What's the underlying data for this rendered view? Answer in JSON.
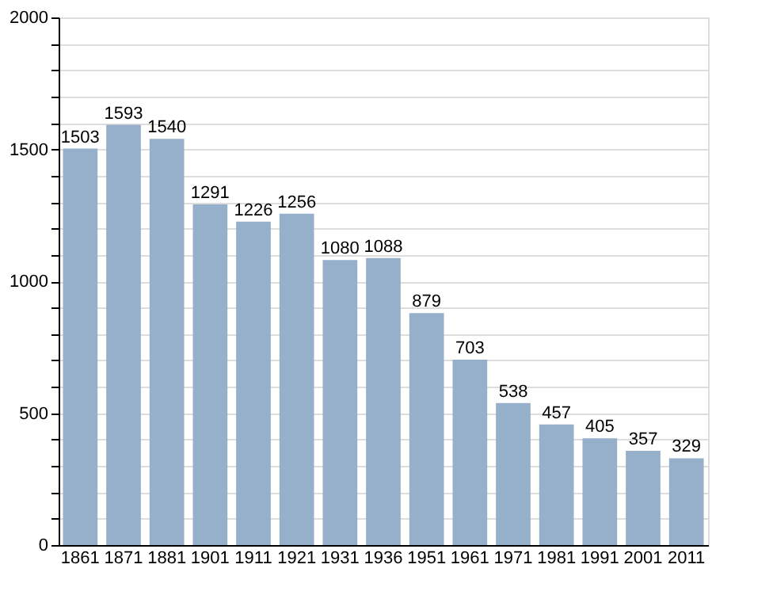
{
  "chart_data": {
    "type": "bar",
    "categories": [
      "1861",
      "1871",
      "1881",
      "1901",
      "1911",
      "1921",
      "1931",
      "1936",
      "1951",
      "1961",
      "1971",
      "1981",
      "1991",
      "2001",
      "2011"
    ],
    "values": [
      1503,
      1593,
      1540,
      1291,
      1226,
      1256,
      1080,
      1088,
      879,
      703,
      538,
      457,
      405,
      357,
      329
    ],
    "color": "#96b0cc",
    "ylim": [
      0,
      2000
    ],
    "yticks": [
      0,
      {
        "value": 100,
        "label": null
      },
      {
        "value": 200,
        "label": null
      },
      {
        "value": 300,
        "label": null
      },
      {
        "value": 400,
        "label": null
      },
      500,
      {
        "value": 600,
        "label": null
      },
      {
        "value": 700,
        "label": null
      },
      {
        "value": 800,
        "label": null
      },
      {
        "value": 900,
        "label": null
      },
      1000,
      {
        "value": 1100,
        "label": null
      },
      {
        "value": 1200,
        "label": null
      },
      {
        "value": 1300,
        "label": null
      },
      {
        "value": 1400,
        "label": null
      },
      1500,
      {
        "value": 1600,
        "label": null
      },
      {
        "value": 1700,
        "label": null
      },
      {
        "value": 1800,
        "label": null
      },
      {
        "value": 1900,
        "label": null
      },
      2000
    ],
    "grid": true,
    "data_labels": true
  }
}
